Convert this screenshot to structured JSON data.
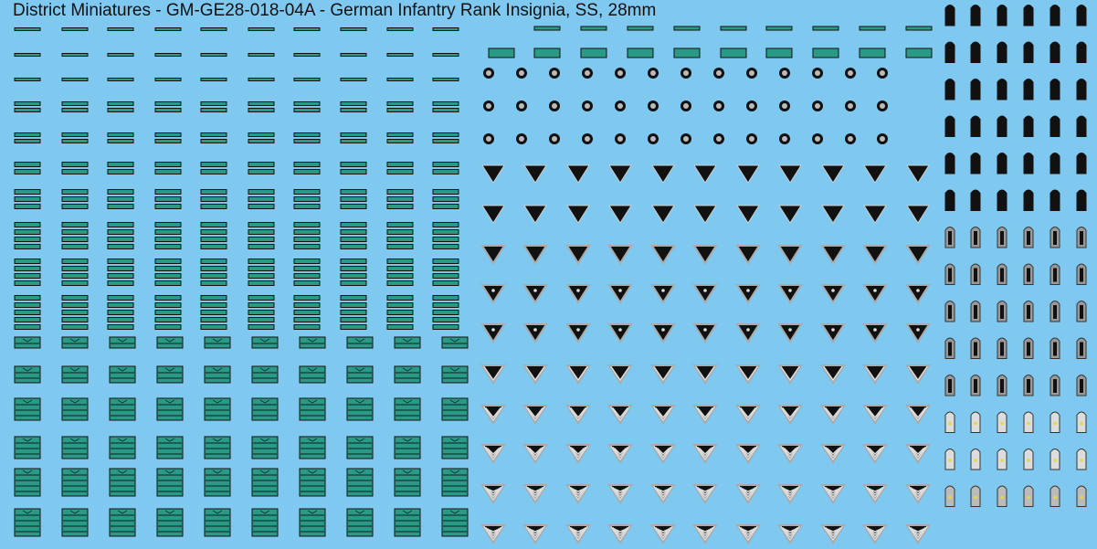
{
  "header": {
    "title": "District Miniatures - GM-GE28-018-04A - German Infantry Rank Insignia, SS, 28mm"
  }
}
